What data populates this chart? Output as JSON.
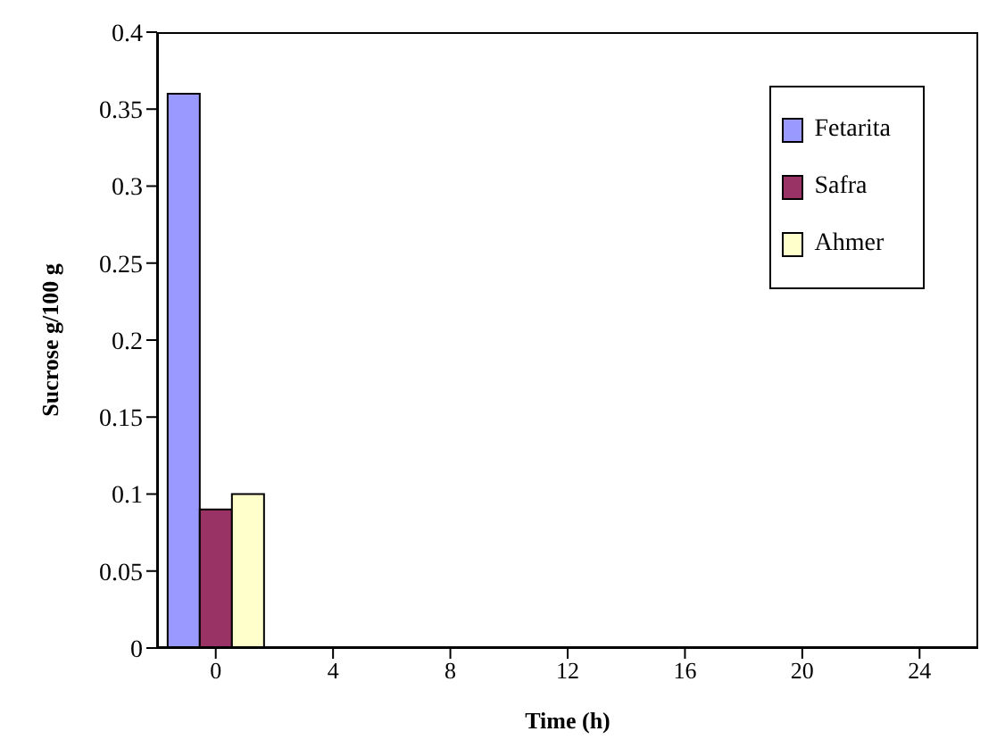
{
  "chart_data": {
    "type": "bar",
    "xlabel": "Time (h)",
    "ylabel": "Sucrose g/100  g",
    "categories": [
      "0",
      "4",
      "8",
      "12",
      "16",
      "20",
      "24"
    ],
    "series": [
      {
        "name": "Fetarita",
        "color": "#9999ff",
        "values": [
          0.36,
          0,
          0,
          0,
          0,
          0,
          0
        ]
      },
      {
        "name": "Safra",
        "color": "#993366",
        "values": [
          0.09,
          0,
          0,
          0,
          0,
          0,
          0
        ]
      },
      {
        "name": "Ahmer",
        "color": "#ffffcc",
        "values": [
          0.1,
          0,
          0,
          0,
          0,
          0,
          0
        ]
      }
    ],
    "ylim": [
      0,
      0.4
    ],
    "yticks": [
      0,
      0.05,
      0.1,
      0.15,
      0.2,
      0.25,
      0.3,
      0.35,
      0.4
    ],
    "grid": false,
    "legend": "top right"
  }
}
